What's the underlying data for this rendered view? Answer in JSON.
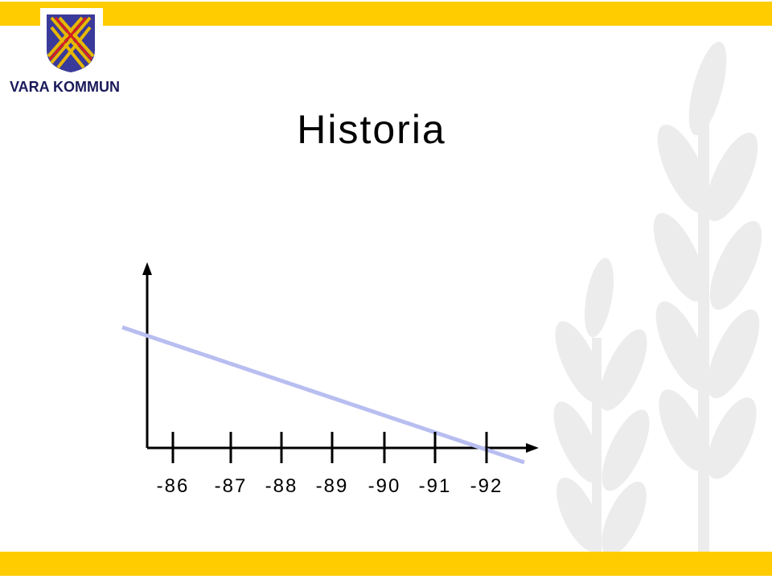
{
  "logo": {
    "text": "VARA KOMMUN"
  },
  "header": {
    "title": "Historia"
  },
  "timeline": {
    "labels": [
      "-86",
      "-87",
      "-88",
      "-89",
      "-90",
      "-91",
      "-92"
    ]
  }
}
